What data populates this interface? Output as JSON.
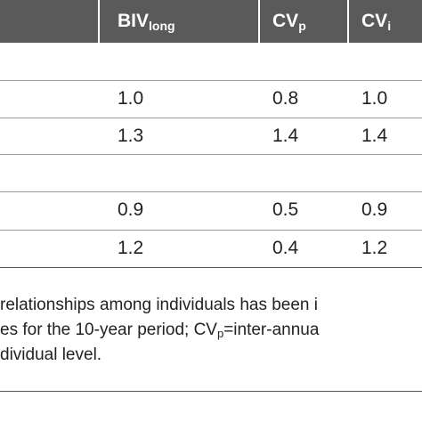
{
  "table": {
    "header": [
      {
        "text": "BIV",
        "sub": "long"
      },
      {
        "text": "CV",
        "sub": "p"
      },
      {
        "text": "CV",
        "sub": "i"
      }
    ],
    "rows": [
      [
        "1.0",
        "0.8",
        "1.0"
      ],
      [
        "1.3",
        "1.4",
        "1.4"
      ],
      [
        "0.9",
        "0.5",
        "0.9"
      ],
      [
        "1.2",
        "0.4",
        "1.2"
      ]
    ]
  },
  "footnote": {
    "line1": "relationships among individuals has been i",
    "line2_a": "es for the 10-year period; CV",
    "line2_sub": "p",
    "line2_b": "=inter-annua",
    "line3": "dividual level."
  }
}
